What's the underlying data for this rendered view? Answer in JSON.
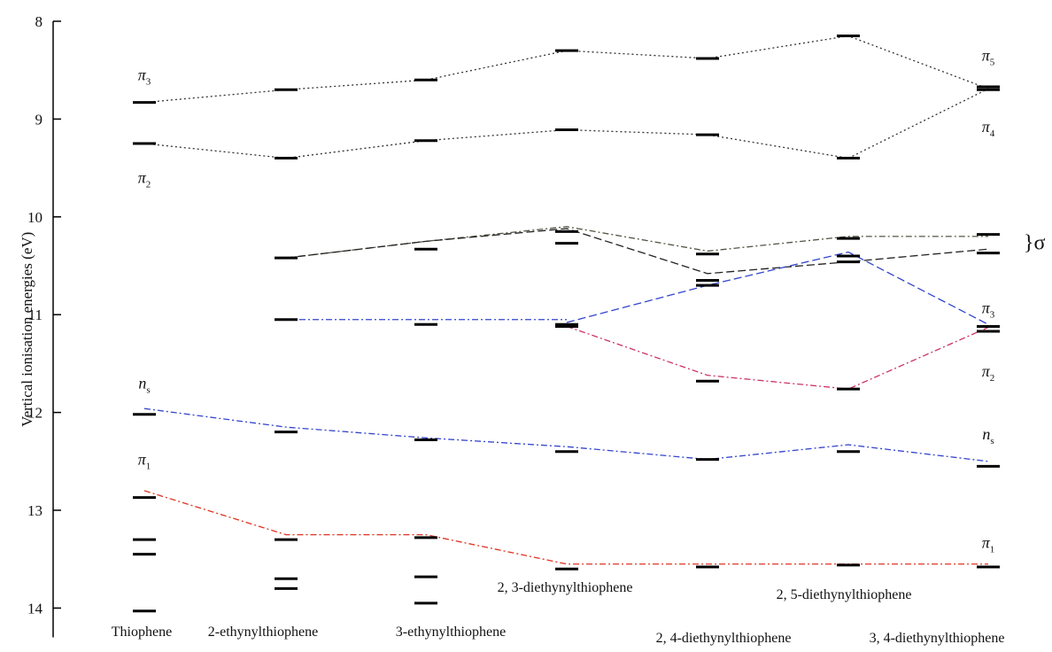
{
  "chart_data": {
    "type": "line",
    "title": "",
    "xlabel": "",
    "ylabel": "Vertical ionisation energies (eV)",
    "ylim": [
      8.0,
      14.3
    ],
    "y_inverted": true,
    "yticks": [
      8,
      9,
      10,
      11,
      12,
      13,
      14
    ],
    "categories": [
      "Thiophene",
      "2-ethynylthiophene",
      "3-ethynylthiophene",
      "2, 3-diethynylthiophene",
      "2, 4-diethynylthiophene",
      "2, 5-diethynylthiophene",
      "3, 4-diethynylthiophene"
    ],
    "levels": [
      [
        8.83,
        9.25,
        12.02,
        12.87,
        13.3,
        13.45,
        14.03
      ],
      [
        8.7,
        9.4,
        10.42,
        11.05,
        12.2,
        13.3,
        13.7,
        13.8
      ],
      [
        8.6,
        9.22,
        10.33,
        11.1,
        12.28,
        13.28,
        13.68,
        13.95
      ],
      [
        8.3,
        9.11,
        10.15,
        10.27,
        11.1,
        11.12,
        12.4,
        13.6
      ],
      [
        8.38,
        9.16,
        10.38,
        10.65,
        10.7,
        11.68,
        12.48,
        13.58
      ],
      [
        8.15,
        9.4,
        10.22,
        10.4,
        10.46,
        11.76,
        12.4,
        13.56
      ],
      [
        8.67,
        8.7,
        10.18,
        10.37,
        11.12,
        11.17,
        12.55,
        13.58
      ]
    ],
    "correlation_lines": [
      {
        "style": "dotted",
        "color": "#333333",
        "x": [
          0,
          1,
          2,
          3,
          4,
          5,
          6
        ],
        "y": [
          8.83,
          8.7,
          8.6,
          8.3,
          8.38,
          8.15,
          8.69
        ]
      },
      {
        "style": "dotted",
        "color": "#333333",
        "x": [
          0,
          1,
          2,
          3,
          4,
          5,
          6
        ],
        "y": [
          9.25,
          9.4,
          9.22,
          9.11,
          9.16,
          9.4,
          8.69
        ]
      },
      {
        "style": "dashdot",
        "color": "#555544",
        "x": [
          1,
          2,
          3,
          4,
          5,
          6
        ],
        "y": [
          10.42,
          10.25,
          10.1,
          10.35,
          10.2,
          10.2
        ]
      },
      {
        "style": "dashed",
        "color": "#222222",
        "x": [
          1,
          2,
          3,
          4,
          5,
          6
        ],
        "y": [
          10.42,
          10.25,
          10.12,
          10.58,
          10.46,
          10.33
        ]
      },
      {
        "style": "dashdot",
        "color": "#3344cc",
        "x": [
          1,
          2,
          3
        ],
        "y": [
          11.05,
          11.05,
          11.05
        ]
      },
      {
        "style": "dashed",
        "color": "#3344cc",
        "x": [
          3,
          4,
          5,
          6
        ],
        "y": [
          11.08,
          10.7,
          10.36,
          11.1
        ]
      },
      {
        "style": "dashdot",
        "color": "#cc3366",
        "x": [
          3,
          4,
          5,
          6
        ],
        "y": [
          11.12,
          11.62,
          11.76,
          11.13
        ]
      },
      {
        "style": "dashdot",
        "color": "#3344cc",
        "x": [
          0,
          1,
          2,
          3,
          4,
          5,
          6
        ],
        "y": [
          11.96,
          12.15,
          12.26,
          12.35,
          12.48,
          12.33,
          12.5
        ]
      },
      {
        "style": "dashdot",
        "color": "#dd3322",
        "x": [
          0,
          1,
          2,
          3,
          4,
          5,
          6
        ],
        "y": [
          12.8,
          13.25,
          13.25,
          13.55,
          13.55,
          13.55,
          13.55
        ]
      }
    ],
    "annotations": [
      {
        "text": "π",
        "sub": "3",
        "x": 0,
        "y": 8.55
      },
      {
        "text": "π",
        "sub": "2",
        "x": 0,
        "y": 9.6
      },
      {
        "text": "n",
        "sub": "s",
        "x": 0,
        "y": 11.7
      },
      {
        "text": "π",
        "sub": "1",
        "x": 0,
        "y": 12.48
      },
      {
        "text": "π",
        "sub": "5",
        "x": 6,
        "y": 8.35
      },
      {
        "text": "π",
        "sub": "4",
        "x": 6,
        "y": 9.08
      },
      {
        "text": "π",
        "sub": "3",
        "x": 6,
        "y": 10.93
      },
      {
        "text": "π",
        "sub": "2",
        "x": 6,
        "y": 11.58
      },
      {
        "text": "n",
        "sub": "s",
        "x": 6,
        "y": 12.22
      },
      {
        "text": "π",
        "sub": "1",
        "x": 6,
        "y": 13.33
      },
      {
        "text": "}σ",
        "sub": "",
        "x": 6,
        "y": 10.28
      }
    ]
  }
}
